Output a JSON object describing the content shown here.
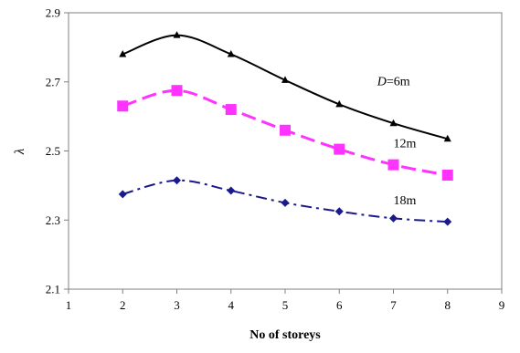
{
  "chart_data": {
    "type": "line",
    "xlabel": "No of storeys",
    "ylabel": "λ",
    "xlim": [
      1,
      9
    ],
    "ylim": [
      2.1,
      2.9
    ],
    "x_ticks": [
      1,
      2,
      3,
      4,
      5,
      6,
      7,
      8,
      9
    ],
    "y_ticks": [
      "2.1",
      "2.3",
      "2.5",
      "2.7",
      "2.9"
    ],
    "grid": false,
    "x": [
      2,
      3,
      4,
      5,
      6,
      7,
      8
    ],
    "series": [
      {
        "name": "D=6m",
        "values": [
          2.78,
          2.835,
          2.78,
          2.705,
          2.635,
          2.58,
          2.535
        ],
        "color": "#000000",
        "marker": "triangle",
        "line_style": "solid"
      },
      {
        "name": "12m",
        "values": [
          2.63,
          2.675,
          2.62,
          2.56,
          2.505,
          2.46,
          2.43
        ],
        "color": "#ff33ff",
        "marker": "square",
        "line_style": "dashed"
      },
      {
        "name": "18m",
        "values": [
          2.375,
          2.415,
          2.385,
          2.35,
          2.325,
          2.305,
          2.295
        ],
        "color": "#1a1a8c",
        "marker": "diamond",
        "line_style": "dash-dot"
      }
    ],
    "annotations": [
      {
        "italic": "D",
        "text": "=6m",
        "x": 6.7,
        "y": 2.69
      },
      {
        "text": "12m",
        "x": 7.0,
        "y": 2.51
      },
      {
        "text": "18m",
        "x": 7.0,
        "y": 2.345
      }
    ]
  }
}
